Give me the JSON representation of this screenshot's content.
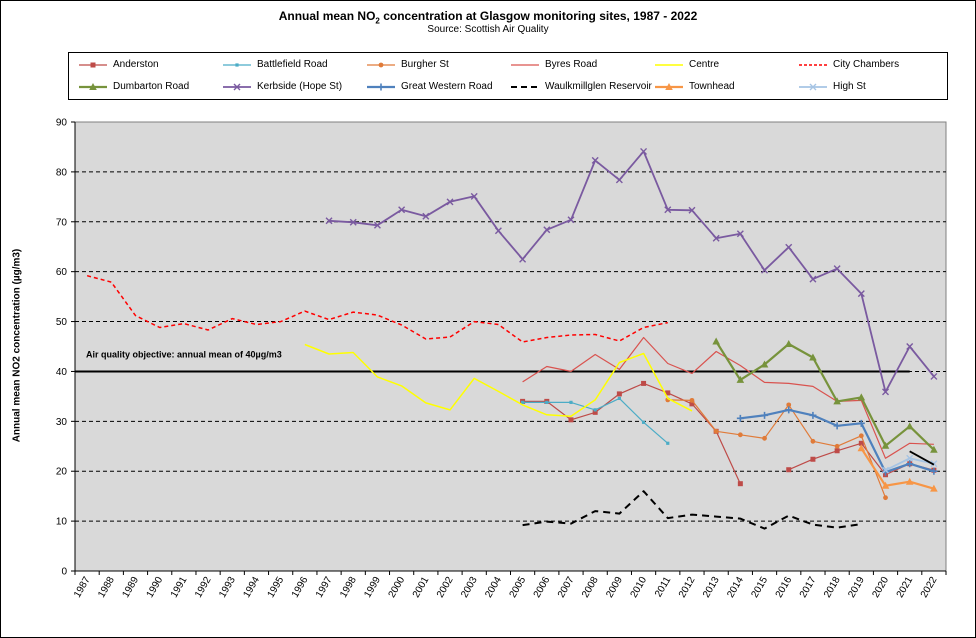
{
  "chart_data": {
    "type": "line",
    "title_main": "Annual mean NO",
    "title_sub": "2",
    "title_rest": " concentration at Glasgow monitoring sites, 1987 - 2022",
    "subtitle": "Source: Scottish Air Quality",
    "ylabel": "Annual mean NO2 concentration (µg/m3)",
    "xlabel": "",
    "ylim": [
      0,
      90
    ],
    "yticks": [
      0,
      10,
      20,
      30,
      40,
      50,
      60,
      70,
      80,
      90
    ],
    "grid": true,
    "plot_background": "#d9d9d9",
    "legend_position": "top",
    "annotation": "Air quality objective: annual mean of 40µg/m3",
    "objective_value": 40,
    "x": [
      "1987",
      "1988",
      "1989",
      "1990",
      "1991",
      "1992",
      "1993",
      "1994",
      "1995",
      "1996",
      "1997",
      "1998",
      "1999",
      "2000",
      "2001",
      "2002",
      "2003",
      "2004",
      "2005",
      "2006",
      "2007",
      "2008",
      "2009",
      "2010",
      "2011",
      "2012",
      "2013",
      "2014",
      "2015",
      "2016",
      "2017",
      "2018",
      "2019",
      "2020",
      "2021",
      "2022"
    ],
    "series": [
      {
        "name": "Anderston",
        "color": "#be4b48",
        "marker": "square",
        "dash": false,
        "width": 1.2,
        "points": [
          [
            "2005",
            34
          ],
          [
            "2006",
            34
          ],
          [
            "2007",
            30.3
          ],
          [
            "2008",
            31.8
          ],
          [
            "2009",
            35.5
          ],
          [
            "2010",
            37.6
          ],
          [
            "2011",
            35.7
          ],
          [
            "2012",
            33.5
          ],
          [
            "2013",
            28
          ],
          [
            "2014",
            17.5
          ]
        ]
      },
      {
        "name": "Anderston",
        "color": "#be4b48",
        "marker": "square",
        "dash": false,
        "width": 1.2,
        "legend": false,
        "points": [
          [
            "2016",
            20.3
          ],
          [
            "2017",
            22.4
          ],
          [
            "2018",
            24.1
          ],
          [
            "2019",
            25.6
          ],
          [
            "2020",
            19.3
          ],
          [
            "2021",
            21.5
          ],
          [
            "2022",
            20.2
          ]
        ]
      },
      {
        "name": "Battlefield Road",
        "color": "#4bacc6",
        "marker": "small",
        "dash": false,
        "width": 1.2,
        "points": [
          [
            "2005",
            33.8
          ],
          [
            "2006",
            33.8
          ],
          [
            "2007",
            33.8
          ],
          [
            "2008",
            32.3
          ],
          [
            "2009",
            34.6
          ],
          [
            "2010",
            29.8
          ],
          [
            "2011",
            25.6
          ]
        ]
      },
      {
        "name": "Burgher St",
        "color": "#e07b39",
        "marker": "circle",
        "dash": false,
        "width": 1.2,
        "points": [
          [
            "2011",
            34.3
          ],
          [
            "2012",
            34.2
          ],
          [
            "2013",
            28
          ],
          [
            "2014",
            27.3
          ],
          [
            "2015",
            26.6
          ],
          [
            "2016",
            33.3
          ],
          [
            "2017",
            26
          ],
          [
            "2018",
            25
          ],
          [
            "2019",
            27.1
          ],
          [
            "2020",
            14.7
          ]
        ]
      },
      {
        "name": "Byres Road",
        "color": "#d9534f",
        "marker": "none",
        "dash": false,
        "width": 1.2,
        "points": [
          [
            "2005",
            37.9
          ],
          [
            "2006",
            41
          ],
          [
            "2007",
            40
          ],
          [
            "2008",
            43.4
          ],
          [
            "2009",
            40.4
          ],
          [
            "2010",
            46.8
          ],
          [
            "2011",
            41.6
          ],
          [
            "2012",
            39.6
          ],
          [
            "2013",
            44
          ],
          [
            "2014",
            41.2
          ],
          [
            "2015",
            37.8
          ],
          [
            "2016",
            37.6
          ],
          [
            "2017",
            37
          ],
          [
            "2018",
            34
          ],
          [
            "2019",
            34.2
          ],
          [
            "2020",
            22.6
          ],
          [
            "2021",
            25.6
          ],
          [
            "2022",
            25.4
          ]
        ]
      },
      {
        "name": "Centre",
        "color": "#ffff00",
        "marker": "none",
        "dash": false,
        "width": 1.5,
        "points": [
          [
            "1996",
            45.4
          ],
          [
            "1997",
            43.5
          ],
          [
            "1998",
            43.8
          ],
          [
            "1999",
            38.9
          ],
          [
            "2000",
            37.1
          ],
          [
            "2001",
            33.7
          ],
          [
            "2002",
            32.3
          ],
          [
            "2003",
            38.6
          ],
          [
            "2004",
            36
          ],
          [
            "2005",
            33.3
          ],
          [
            "2006",
            31.3
          ],
          [
            "2007",
            31
          ],
          [
            "2008",
            34.3
          ],
          [
            "2009",
            41.8
          ],
          [
            "2010",
            43.6
          ],
          [
            "2011",
            34.6
          ],
          [
            "2012",
            32.1
          ]
        ]
      },
      {
        "name": "City Chambers",
        "color": "#ff0000",
        "marker": "none",
        "dash": true,
        "width": 1.5,
        "points": [
          [
            "1987",
            59.2
          ],
          [
            "1988",
            57.9
          ],
          [
            "1989",
            51.2
          ],
          [
            "1990",
            48.8
          ],
          [
            "1991",
            49.6
          ],
          [
            "1992",
            48.3
          ],
          [
            "1993",
            50.6
          ],
          [
            "1994",
            49.4
          ],
          [
            "1995",
            50
          ],
          [
            "1996",
            52.1
          ],
          [
            "1997",
            50.4
          ],
          [
            "1998",
            51.9
          ],
          [
            "1999",
            51.3
          ],
          [
            "2000",
            49.3
          ],
          [
            "2001",
            46.5
          ],
          [
            "2002",
            46.9
          ],
          [
            "2003",
            50
          ],
          [
            "2004",
            49.4
          ],
          [
            "2005",
            45.9
          ],
          [
            "2006",
            46.8
          ],
          [
            "2007",
            47.3
          ],
          [
            "2008",
            47.4
          ],
          [
            "2009",
            46.1
          ],
          [
            "2010",
            48.8
          ],
          [
            "2011",
            49.8
          ]
        ]
      },
      {
        "name": "Dumbarton Road",
        "color": "#77933c",
        "marker": "triangle",
        "dash": false,
        "width": 2.2,
        "points": [
          [
            "2013",
            46
          ],
          [
            "2014",
            38.3
          ],
          [
            "2015",
            41.4
          ],
          [
            "2016",
            45.5
          ],
          [
            "2017",
            42.8
          ],
          [
            "2018",
            34
          ],
          [
            "2019",
            34.8
          ],
          [
            "2020",
            25.1
          ],
          [
            "2021",
            29
          ],
          [
            "2022",
            24.3
          ]
        ]
      },
      {
        "name": "Kerbside (Hope St)",
        "color": "#7a5aa0",
        "marker": "x",
        "dash": false,
        "width": 1.8,
        "points": [
          [
            "1997",
            70.2
          ],
          [
            "1998",
            69.9
          ],
          [
            "1999",
            69.3
          ],
          [
            "2000",
            72.4
          ],
          [
            "2001",
            71.1
          ],
          [
            "2002",
            74
          ],
          [
            "2003",
            75.1
          ],
          [
            "2004",
            68.2
          ],
          [
            "2005",
            62.5
          ],
          [
            "2006",
            68.4
          ],
          [
            "2007",
            70.4
          ],
          [
            "2008",
            82.3
          ],
          [
            "2009",
            78.4
          ],
          [
            "2010",
            84.1
          ],
          [
            "2011",
            72.4
          ],
          [
            "2012",
            72.3
          ],
          [
            "2013",
            66.7
          ],
          [
            "2014",
            67.6
          ],
          [
            "2015",
            60.3
          ],
          [
            "2016",
            64.9
          ],
          [
            "2017",
            58.5
          ],
          [
            "2018",
            60.6
          ],
          [
            "2019",
            55.6
          ],
          [
            "2020",
            35.9
          ],
          [
            "2021",
            45
          ],
          [
            "2022",
            39
          ]
        ]
      },
      {
        "name": "Great Western Road",
        "color": "#4f81bd",
        "marker": "plus",
        "dash": false,
        "width": 2.2,
        "points": [
          [
            "2014",
            30.6
          ],
          [
            "2015",
            31.2
          ],
          [
            "2016",
            32.3
          ],
          [
            "2017",
            31.2
          ],
          [
            "2018",
            29.1
          ],
          [
            "2019",
            29.6
          ],
          [
            "2020",
            19.8
          ],
          [
            "2021",
            21.5
          ],
          [
            "2022",
            20
          ]
        ]
      },
      {
        "name": "Waulkmillglen Reservoir",
        "color": "#000000",
        "marker": "none",
        "dash": true,
        "width": 2,
        "points": [
          [
            "2005",
            9.2
          ],
          [
            "2006",
            9.9
          ],
          [
            "2007",
            9.5
          ],
          [
            "2008",
            12
          ],
          [
            "2009",
            11.5
          ],
          [
            "2010",
            16
          ],
          [
            "2011",
            10.6
          ],
          [
            "2012",
            11.3
          ],
          [
            "2013",
            10.9
          ],
          [
            "2014",
            10.5
          ],
          [
            "2015",
            8.5
          ],
          [
            "2016",
            11.1
          ],
          [
            "2017",
            9.3
          ],
          [
            "2018",
            8.7
          ],
          [
            "2019",
            9.4
          ]
        ]
      },
      {
        "name": "Townhead",
        "color": "#f79646",
        "marker": "triangle",
        "dash": false,
        "width": 2.2,
        "points": [
          [
            "2019",
            24.6
          ],
          [
            "2020",
            17.1
          ],
          [
            "2021",
            17.9
          ],
          [
            "2022",
            16.5
          ]
        ]
      },
      {
        "name": "High St",
        "color": "#a6c4e4",
        "marker": "x",
        "dash": false,
        "width": 1.8,
        "points": [
          [
            "2020",
            20.2
          ],
          [
            "2021",
            22.6
          ],
          [
            "2022",
            21.5
          ]
        ]
      },
      {
        "name": "",
        "color": "#000000",
        "marker": "none",
        "dash": false,
        "width": 1.8,
        "legend": false,
        "points": [
          [
            "2021",
            24
          ],
          [
            "2022",
            21.3
          ]
        ]
      }
    ]
  }
}
